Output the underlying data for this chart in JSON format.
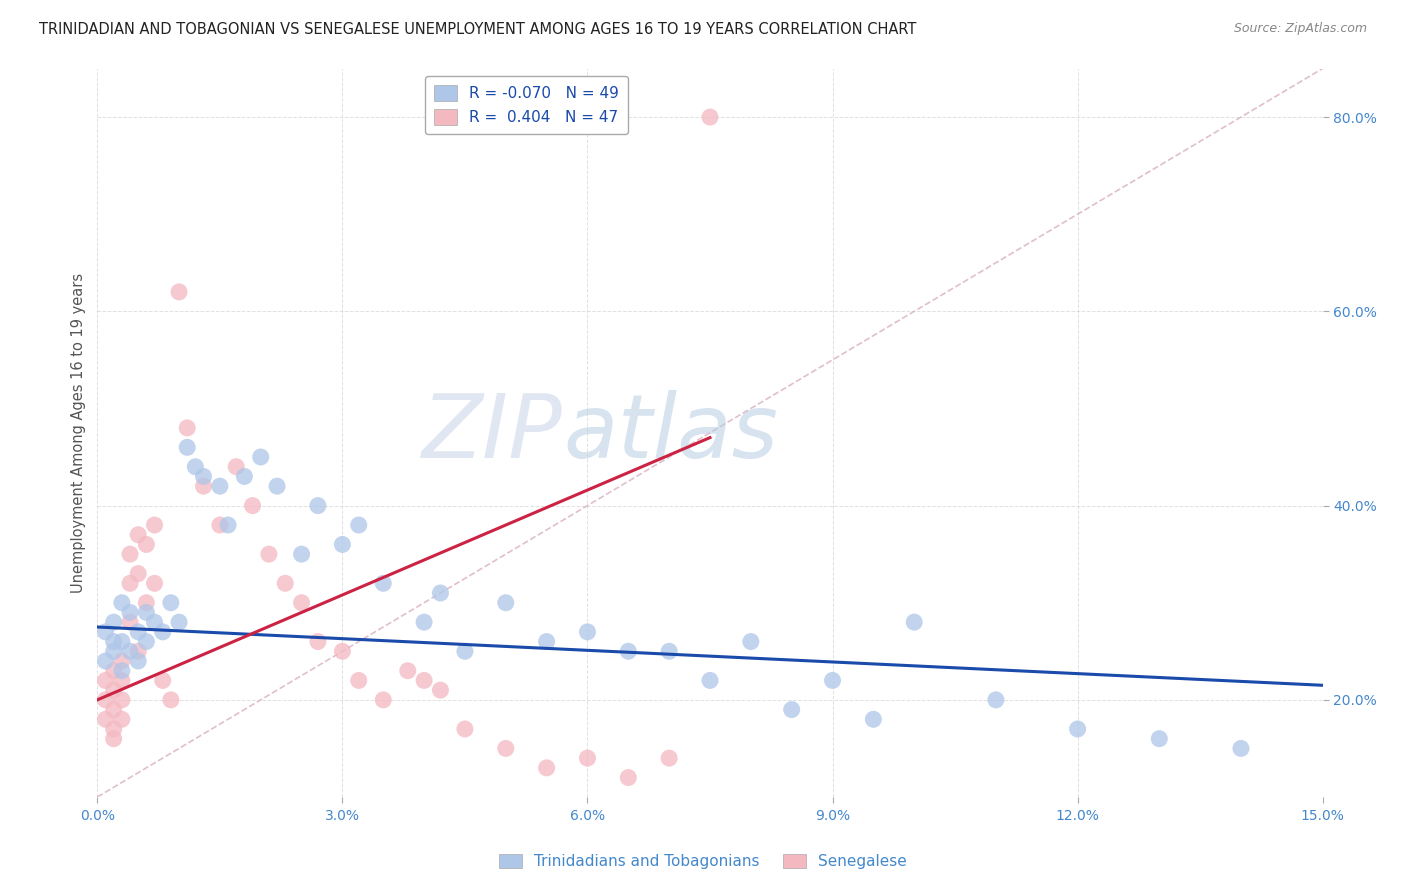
{
  "title": "TRINIDADIAN AND TOBAGONIAN VS SENEGALESE UNEMPLOYMENT AMONG AGES 16 TO 19 YEARS CORRELATION CHART",
  "source": "Source: ZipAtlas.com",
  "ylabel": "Unemployment Among Ages 16 to 19 years",
  "xlim": [
    0.0,
    0.15
  ],
  "ylim": [
    0.1,
    0.85
  ],
  "xticks": [
    0.0,
    0.03,
    0.06,
    0.09,
    0.12,
    0.15
  ],
  "xtick_labels": [
    "0.0%",
    "3.0%",
    "6.0%",
    "9.0%",
    "12.0%",
    "15.0%"
  ],
  "yticks": [
    0.2,
    0.4,
    0.6,
    0.8
  ],
  "ytick_labels": [
    "20.0%",
    "40.0%",
    "60.0%",
    "80.0%"
  ],
  "legend1_label": "R = -0.070   N = 49",
  "legend2_label": "R =  0.404   N = 47",
  "series1_color": "#aec6e8",
  "series2_color": "#f4b8c1",
  "trendline1_color": "#1a4aaa",
  "trendline2_color": "#cc2244",
  "diag_color": "#ddb8c8",
  "watermark_zip": "#c8d4e8",
  "watermark_atlas": "#b8cce4",
  "bg_color": "#ffffff",
  "grid_color": "#cccccc",
  "axis_color": "#4488cc",
  "title_color": "#222222",
  "blue_x": [
    0.001,
    0.001,
    0.002,
    0.002,
    0.002,
    0.003,
    0.003,
    0.003,
    0.004,
    0.004,
    0.005,
    0.005,
    0.006,
    0.006,
    0.007,
    0.008,
    0.009,
    0.01,
    0.011,
    0.012,
    0.013,
    0.015,
    0.016,
    0.018,
    0.02,
    0.022,
    0.025,
    0.027,
    0.03,
    0.032,
    0.035,
    0.04,
    0.042,
    0.045,
    0.05,
    0.055,
    0.06,
    0.065,
    0.07,
    0.075,
    0.08,
    0.085,
    0.09,
    0.095,
    0.1,
    0.11,
    0.12,
    0.13,
    0.14
  ],
  "blue_y": [
    0.24,
    0.27,
    0.25,
    0.26,
    0.28,
    0.23,
    0.26,
    0.3,
    0.25,
    0.29,
    0.24,
    0.27,
    0.26,
    0.29,
    0.28,
    0.27,
    0.3,
    0.28,
    0.46,
    0.44,
    0.43,
    0.42,
    0.38,
    0.43,
    0.45,
    0.42,
    0.35,
    0.4,
    0.36,
    0.38,
    0.32,
    0.28,
    0.31,
    0.25,
    0.3,
    0.26,
    0.27,
    0.25,
    0.25,
    0.22,
    0.26,
    0.19,
    0.22,
    0.18,
    0.28,
    0.2,
    0.17,
    0.16,
    0.15
  ],
  "pink_x": [
    0.001,
    0.001,
    0.001,
    0.002,
    0.002,
    0.002,
    0.002,
    0.002,
    0.003,
    0.003,
    0.003,
    0.003,
    0.004,
    0.004,
    0.004,
    0.005,
    0.005,
    0.005,
    0.006,
    0.006,
    0.007,
    0.007,
    0.008,
    0.009,
    0.01,
    0.011,
    0.013,
    0.015,
    0.017,
    0.019,
    0.021,
    0.023,
    0.025,
    0.027,
    0.03,
    0.032,
    0.035,
    0.038,
    0.04,
    0.042,
    0.045,
    0.05,
    0.055,
    0.06,
    0.065,
    0.07,
    0.075
  ],
  "pink_y": [
    0.22,
    0.2,
    0.18,
    0.23,
    0.21,
    0.19,
    0.17,
    0.16,
    0.24,
    0.22,
    0.2,
    0.18,
    0.35,
    0.32,
    0.28,
    0.37,
    0.33,
    0.25,
    0.36,
    0.3,
    0.38,
    0.32,
    0.22,
    0.2,
    0.62,
    0.48,
    0.42,
    0.38,
    0.44,
    0.4,
    0.35,
    0.32,
    0.3,
    0.26,
    0.25,
    0.22,
    0.2,
    0.23,
    0.22,
    0.21,
    0.17,
    0.15,
    0.13,
    0.14,
    0.12,
    0.14,
    0.8
  ],
  "blue_trend_x0": 0.0,
  "blue_trend_y0": 0.275,
  "blue_trend_x1": 0.15,
  "blue_trend_y1": 0.215,
  "pink_trend_x0": 0.0,
  "pink_trend_y0": 0.2,
  "pink_trend_x1": 0.075,
  "pink_trend_y1": 0.47
}
